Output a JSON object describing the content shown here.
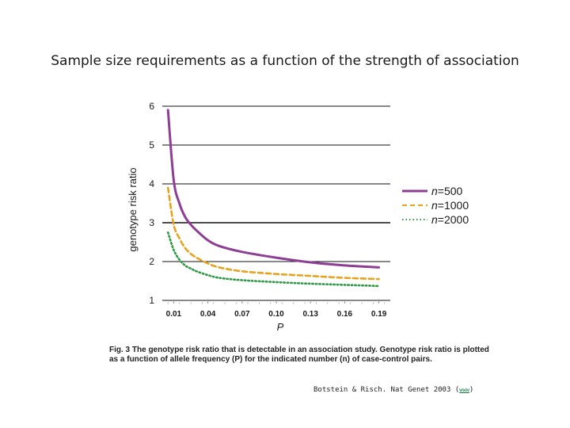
{
  "slide": {
    "title": "Sample size requirements as a function of the strength of association"
  },
  "chart_data": {
    "type": "line",
    "xlabel": "P",
    "ylabel": "genotype risk ratio",
    "x_ticks": [
      "0.01",
      "0.04",
      "0.07",
      "0.10",
      "0.13",
      "0.16",
      "0.19"
    ],
    "y_ticks": [
      "1",
      "2",
      "3",
      "4",
      "5",
      "6"
    ],
    "xlim": [
      0.0,
      0.2
    ],
    "ylim": [
      1,
      6
    ],
    "grid": "horizontal",
    "legend_position": "right",
    "series": [
      {
        "name": "n=500",
        "color": "#8e3f95",
        "style": "solid",
        "x": [
          0.005,
          0.01,
          0.015,
          0.02,
          0.025,
          0.03,
          0.04,
          0.05,
          0.07,
          0.1,
          0.13,
          0.16,
          0.19
        ],
        "y": [
          5.9,
          4.1,
          3.5,
          3.15,
          2.95,
          2.8,
          2.55,
          2.4,
          2.25,
          2.1,
          1.98,
          1.9,
          1.85
        ]
      },
      {
        "name": "n=1000",
        "color": "#e8a21b",
        "style": "dashed",
        "x": [
          0.005,
          0.01,
          0.015,
          0.02,
          0.025,
          0.03,
          0.04,
          0.05,
          0.07,
          0.1,
          0.13,
          0.16,
          0.19
        ],
        "y": [
          3.9,
          2.95,
          2.6,
          2.35,
          2.2,
          2.1,
          1.95,
          1.85,
          1.75,
          1.68,
          1.63,
          1.58,
          1.55
        ]
      },
      {
        "name": "n=2000",
        "color": "#2f9a45",
        "style": "dotted",
        "x": [
          0.005,
          0.01,
          0.015,
          0.02,
          0.025,
          0.03,
          0.04,
          0.05,
          0.07,
          0.1,
          0.13,
          0.16,
          0.19
        ],
        "y": [
          2.75,
          2.3,
          2.05,
          1.9,
          1.82,
          1.75,
          1.65,
          1.58,
          1.52,
          1.47,
          1.43,
          1.4,
          1.37
        ]
      }
    ]
  },
  "caption": {
    "text": "Fig. 3 The genotype risk ratio that is detectable in an association study. Genotype risk ratio is plotted as a function of allele frequency (P) for the indicated number (n) of case-control pairs."
  },
  "citation": {
    "text": "Botstein & Risch. Nat Genet 2003 (",
    "link": "www",
    "close": ")"
  }
}
